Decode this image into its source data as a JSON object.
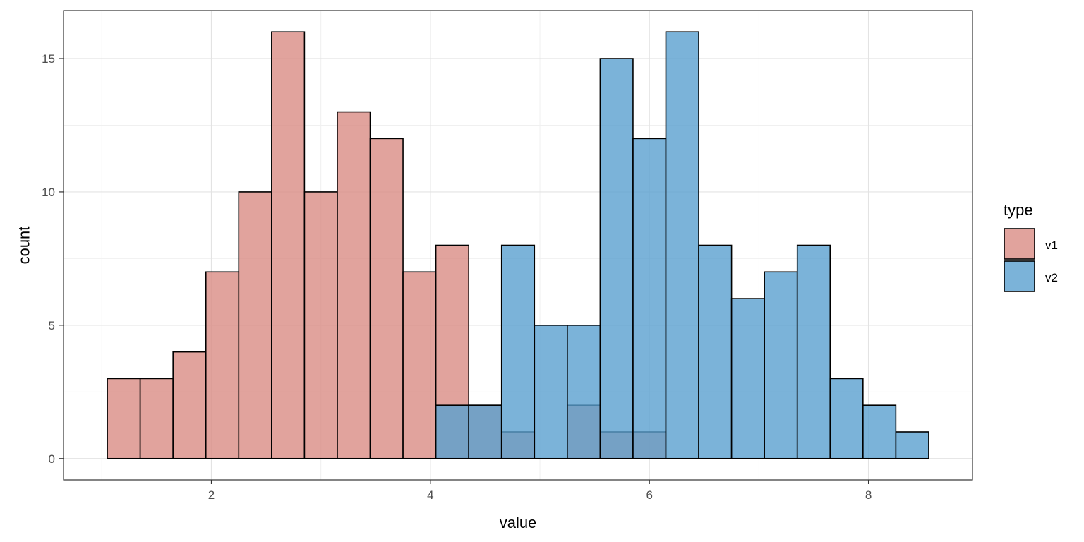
{
  "chart_data": {
    "type": "bar",
    "subtype": "overlapping-histogram",
    "title": "",
    "xlabel": "value",
    "ylabel": "count",
    "xlim": [
      0.65,
      8.95
    ],
    "ylim": [
      -0.8,
      16.8
    ],
    "x_ticks": [
      2,
      4,
      6,
      8
    ],
    "y_ticks": [
      0,
      5,
      10,
      15
    ],
    "grid": true,
    "legend_position": "right",
    "legend_title": "type",
    "bin_width": 0.3,
    "series": [
      {
        "name": "v1",
        "color": "#d98c84",
        "bins": [
          {
            "x0": 1.05,
            "x1": 1.35,
            "count": 3
          },
          {
            "x0": 1.35,
            "x1": 1.65,
            "count": 3
          },
          {
            "x0": 1.65,
            "x1": 1.95,
            "count": 4
          },
          {
            "x0": 1.95,
            "x1": 2.25,
            "count": 7
          },
          {
            "x0": 2.25,
            "x1": 2.55,
            "count": 10
          },
          {
            "x0": 2.55,
            "x1": 2.85,
            "count": 16
          },
          {
            "x0": 2.85,
            "x1": 3.15,
            "count": 10
          },
          {
            "x0": 3.15,
            "x1": 3.45,
            "count": 13
          },
          {
            "x0": 3.45,
            "x1": 3.75,
            "count": 12
          },
          {
            "x0": 3.75,
            "x1": 4.05,
            "count": 7
          },
          {
            "x0": 4.05,
            "x1": 4.35,
            "count": 8
          },
          {
            "x0": 4.35,
            "x1": 4.65,
            "count": 2
          },
          {
            "x0": 4.65,
            "x1": 4.95,
            "count": 1
          },
          {
            "x0": 5.25,
            "x1": 5.55,
            "count": 2
          },
          {
            "x0": 5.55,
            "x1": 5.85,
            "count": 1
          },
          {
            "x0": 5.85,
            "x1": 6.15,
            "count": 1
          }
        ]
      },
      {
        "name": "v2",
        "color": "#5aa0d0",
        "bins": [
          {
            "x0": 4.05,
            "x1": 4.35,
            "count": 2
          },
          {
            "x0": 4.35,
            "x1": 4.65,
            "count": 2
          },
          {
            "x0": 4.65,
            "x1": 4.95,
            "count": 8
          },
          {
            "x0": 4.95,
            "x1": 5.25,
            "count": 5
          },
          {
            "x0": 5.25,
            "x1": 5.55,
            "count": 5
          },
          {
            "x0": 5.55,
            "x1": 5.85,
            "count": 15
          },
          {
            "x0": 5.85,
            "x1": 6.15,
            "count": 12
          },
          {
            "x0": 6.15,
            "x1": 6.45,
            "count": 16
          },
          {
            "x0": 6.45,
            "x1": 6.75,
            "count": 8
          },
          {
            "x0": 6.75,
            "x1": 7.05,
            "count": 6
          },
          {
            "x0": 7.05,
            "x1": 7.35,
            "count": 7
          },
          {
            "x0": 7.35,
            "x1": 7.65,
            "count": 8
          },
          {
            "x0": 7.65,
            "x1": 7.95,
            "count": 3
          },
          {
            "x0": 7.95,
            "x1": 8.25,
            "count": 2
          },
          {
            "x0": 8.25,
            "x1": 8.55,
            "count": 1
          }
        ]
      }
    ]
  }
}
